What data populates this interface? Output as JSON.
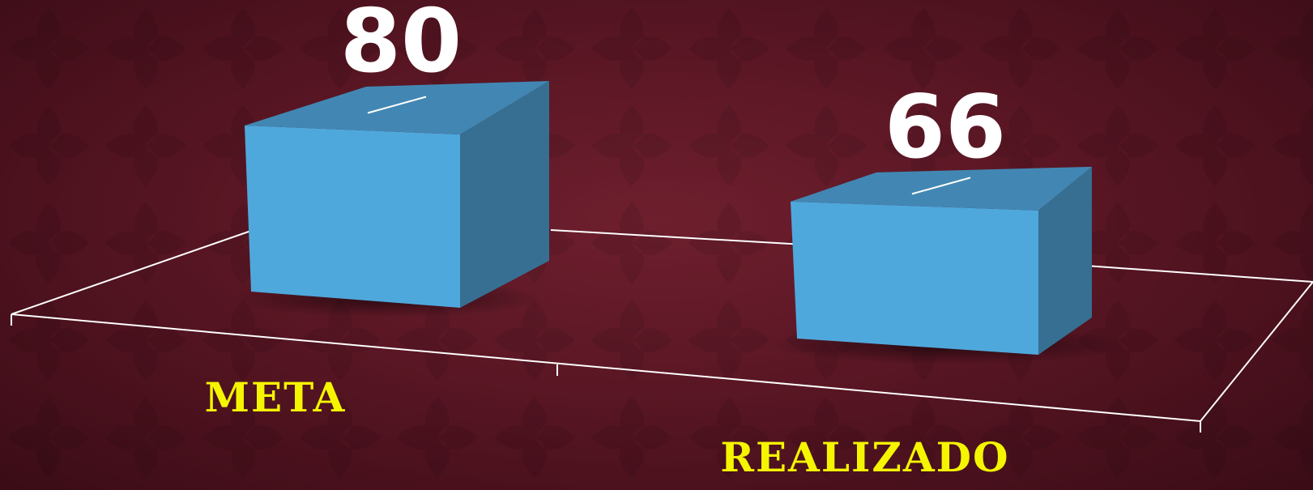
{
  "chart_data": {
    "type": "bar",
    "style": "3d-box",
    "categories": [
      "META",
      "REALIZADO"
    ],
    "values": [
      80,
      66
    ],
    "title": "",
    "xlabel": "",
    "ylabel": "",
    "ylim": [
      0,
      80
    ],
    "grid": false,
    "legend": "none",
    "colors": {
      "bar_front": "#4fa8dc",
      "bar_top": "#4287b3",
      "bar_side": "#366f92",
      "value_label": "#ffffff",
      "category_label": "#f5f500",
      "floor_lines": "#ffffff",
      "background": "#5a1624"
    }
  }
}
